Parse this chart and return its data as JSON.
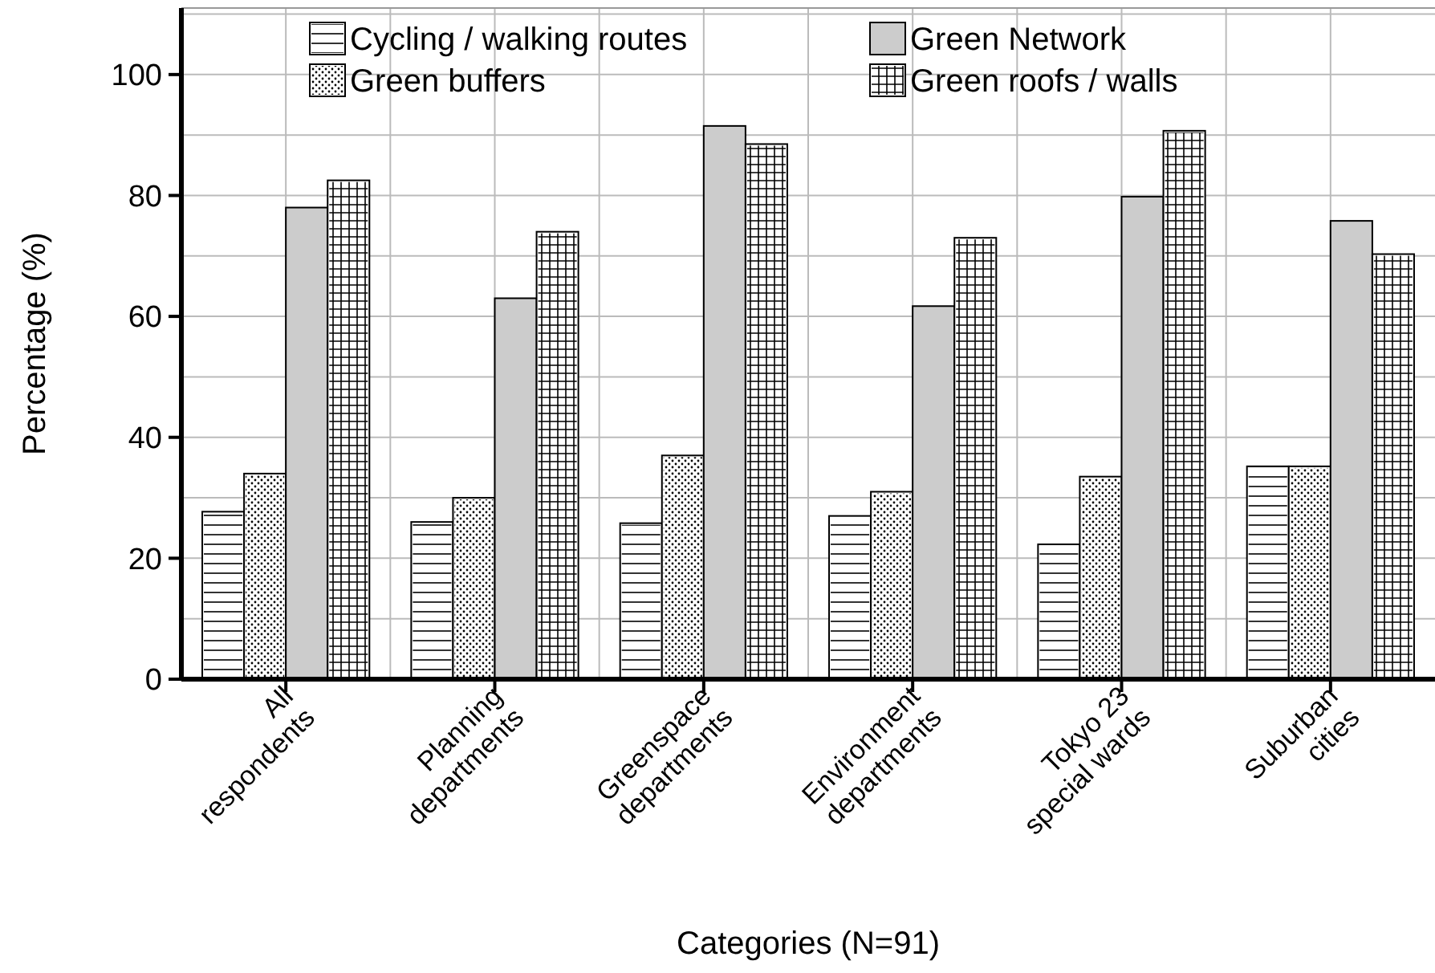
{
  "chart_data": {
    "type": "bar",
    "xlabel": "Categories (N=91)",
    "ylabel": "Percentage (%)",
    "categories": [
      "All\nrespondents",
      "Planning\ndepartments",
      "Greenspace\ndepartments",
      "Environment\ndepartments",
      "Tokyo 23\nspecial wards",
      "Suburban\ncities"
    ],
    "series": [
      {
        "name": "Cycling / walking routes",
        "color": "#ffffff",
        "values": [
          27.7,
          26,
          25.8,
          27,
          22.3,
          35.2
        ]
      },
      {
        "name": "Green buffers",
        "color": "#ffffff",
        "values": [
          34,
          30,
          37,
          31,
          33.5,
          35.2
        ]
      },
      {
        "name": "Green Network",
        "color": "#cccccc",
        "values": [
          78,
          63,
          91.5,
          61.7,
          79.8,
          75.8
        ]
      },
      {
        "name": "Green roofs / walls",
        "color": "#ffffff",
        "values": [
          82.5,
          74,
          88.5,
          73,
          90.7,
          70.3
        ]
      }
    ],
    "ylim": [
      0,
      111
    ],
    "yticks": [
      0,
      {
        "value": 10,
        "label": null
      },
      20,
      {
        "value": 30,
        "label": null
      },
      40,
      {
        "value": 50,
        "label": null
      },
      60,
      {
        "value": 70,
        "label": null
      },
      80,
      {
        "value": 90,
        "label": null
      },
      100,
      {
        "value": 110,
        "label": null
      }
    ],
    "grid": true,
    "legend": "top"
  }
}
